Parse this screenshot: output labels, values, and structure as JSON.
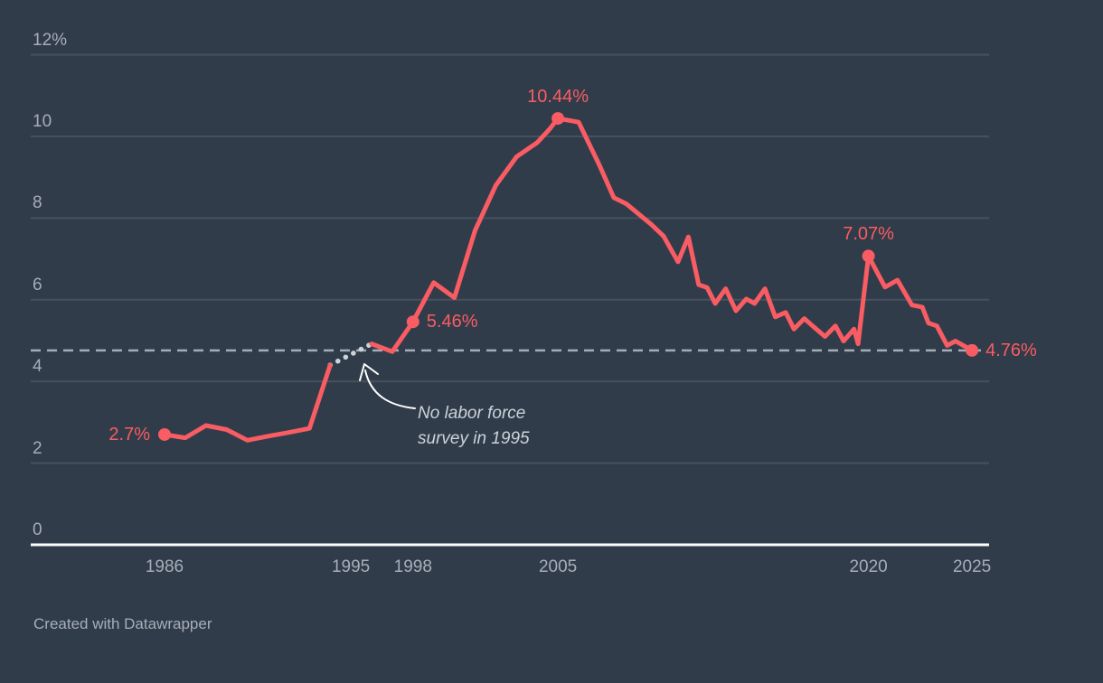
{
  "colors": {
    "background": "#313c4a",
    "grid": "#47515e",
    "axis_line": "#ffffff",
    "tick_text": "#a6aeb8",
    "line": "#fa5c63",
    "dashed_reference": "#a3adb6",
    "gap_dots": "#cbd3d9",
    "annotation_text": "#cbd3d9",
    "arrow": "#ffffff"
  },
  "chart_data": {
    "type": "line",
    "unit": "%",
    "axis_range": {
      "x_min": 1986,
      "x_max": 2025,
      "y_min": 0,
      "y_max": 12
    },
    "grid": "horizontal-only",
    "y_ticks": [
      {
        "value": 12,
        "label": "12%"
      },
      {
        "value": 10,
        "label": "10"
      },
      {
        "value": 8,
        "label": "8"
      },
      {
        "value": 6,
        "label": "6"
      },
      {
        "value": 4,
        "label": "4"
      },
      {
        "value": 2,
        "label": "2"
      },
      {
        "value": 0,
        "label": "0"
      }
    ],
    "x_ticks": [
      {
        "year": 1986,
        "label": "1986"
      },
      {
        "year": 1995,
        "label": "1995"
      },
      {
        "year": 1998,
        "label": "1998"
      },
      {
        "year": 2005,
        "label": "2005"
      },
      {
        "year": 2020,
        "label": "2020"
      },
      {
        "year": 2025,
        "label": "2025"
      }
    ],
    "series": [
      {
        "name": "rate",
        "segments": [
          [
            [
              1986,
              2.7
            ],
            [
              1987,
              2.62
            ],
            [
              1988,
              2.92
            ],
            [
              1989,
              2.82
            ],
            [
              1990,
              2.56
            ],
            [
              1991,
              2.66
            ],
            [
              1992,
              2.75
            ],
            [
              1993,
              2.85
            ],
            [
              1994,
              4.4
            ]
          ],
          [
            [
              1996,
              4.92
            ],
            [
              1997,
              4.73
            ],
            [
              1998,
              5.46
            ],
            [
              1999,
              6.42
            ],
            [
              2000,
              6.05
            ],
            [
              2001,
              7.7
            ],
            [
              2002,
              8.8
            ],
            [
              2003,
              9.5
            ],
            [
              2004,
              9.85
            ],
            [
              2004.6,
              10.18
            ],
            [
              2005,
              10.44
            ],
            [
              2006,
              10.35
            ],
            [
              2007,
              9.3
            ],
            [
              2007.7,
              8.5
            ],
            [
              2008.3,
              8.35
            ],
            [
              2009.5,
              7.85
            ],
            [
              2010.1,
              7.56
            ],
            [
              2010.8,
              6.93
            ],
            [
              2011.3,
              7.54
            ],
            [
              2011.8,
              6.37
            ],
            [
              2012.2,
              6.3
            ],
            [
              2012.6,
              5.91
            ],
            [
              2013.1,
              6.27
            ],
            [
              2013.6,
              5.73
            ],
            [
              2014.1,
              6.02
            ],
            [
              2014.5,
              5.91
            ],
            [
              2015,
              6.27
            ],
            [
              2015.5,
              5.58
            ],
            [
              2016,
              5.69
            ],
            [
              2016.4,
              5.28
            ],
            [
              2016.9,
              5.54
            ],
            [
              2017.3,
              5.36
            ],
            [
              2017.9,
              5.1
            ],
            [
              2018.4,
              5.36
            ],
            [
              2018.8,
              4.99
            ],
            [
              2019.3,
              5.28
            ],
            [
              2019.5,
              4.92
            ],
            [
              2020,
              7.07
            ],
            [
              2020.8,
              6.31
            ],
            [
              2021.4,
              6.48
            ],
            [
              2022.1,
              5.87
            ],
            [
              2022.6,
              5.82
            ],
            [
              2022.9,
              5.43
            ],
            [
              2023.3,
              5.36
            ],
            [
              2023.8,
              4.88
            ],
            [
              2024.2,
              4.99
            ],
            [
              2025,
              4.76
            ]
          ]
        ]
      }
    ],
    "gap_segment": {
      "from": [
        1994,
        4.4
      ],
      "to": [
        1996,
        4.92
      ],
      "style": "dotted"
    },
    "reference_line": {
      "value": 4.76,
      "style": "dashed"
    },
    "markers": [
      {
        "year": 1986,
        "value": 2.7,
        "label": "2.7%",
        "placement": "left"
      },
      {
        "year": 1998,
        "value": 5.46,
        "label": "5.46%",
        "placement": "right"
      },
      {
        "year": 2005,
        "value": 10.44,
        "label": "10.44%",
        "placement": "above"
      },
      {
        "year": 2020,
        "value": 7.07,
        "label": "7.07%",
        "placement": "above"
      },
      {
        "year": 2025,
        "value": 4.76,
        "label": "4.76%",
        "placement": "right"
      }
    ],
    "annotation": {
      "line1": "No labor force",
      "line2": "survey in 1995"
    }
  },
  "footer": {
    "credit": "Created with Datawrapper"
  }
}
